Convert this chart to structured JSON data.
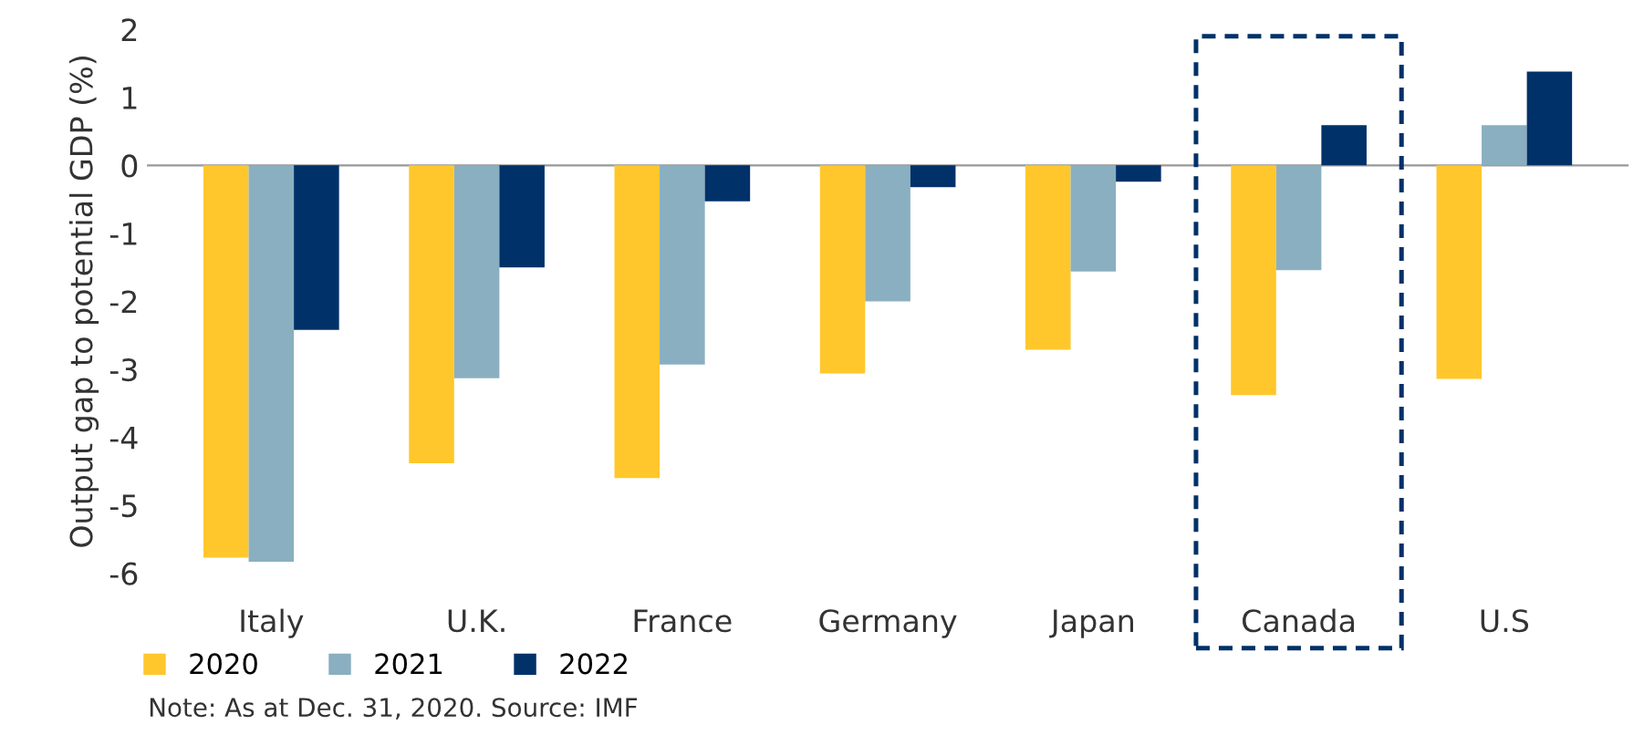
{
  "chart_data": {
    "type": "bar",
    "ylabel": "Output gap to potential GDP (%)",
    "categories": [
      "Italy",
      "U.K.",
      "France",
      "Germany",
      "Japan",
      "Canada",
      "U.S"
    ],
    "series": [
      {
        "name": "2020",
        "color": "#ffc72c",
        "values": [
          -5.77,
          -4.38,
          -4.6,
          -3.06,
          -2.71,
          -3.38,
          -3.14
        ]
      },
      {
        "name": "2021",
        "color": "#8aafc0",
        "values": [
          -5.83,
          -3.13,
          -2.93,
          -2.0,
          -1.56,
          -1.54,
          0.59
        ]
      },
      {
        "name": "2022",
        "color": "#003168",
        "values": [
          -2.42,
          -1.5,
          -0.53,
          -0.32,
          -0.24,
          0.59,
          1.38
        ]
      }
    ],
    "ylim": [
      -6,
      2
    ],
    "yticks": [
      {
        "value": -6,
        "label": "-6"
      },
      {
        "value": -5,
        "label": "-5"
      },
      {
        "value": -4,
        "label": "-4"
      },
      {
        "value": -3,
        "label": "-3"
      },
      {
        "value": -2,
        "label": "-2"
      },
      {
        "value": -1,
        "label": "-1"
      },
      0,
      1,
      2
    ],
    "legend": "bottom left",
    "annotations": [
      "Note: As at Dec. 31, 2020. Source: IMF"
    ]
  }
}
